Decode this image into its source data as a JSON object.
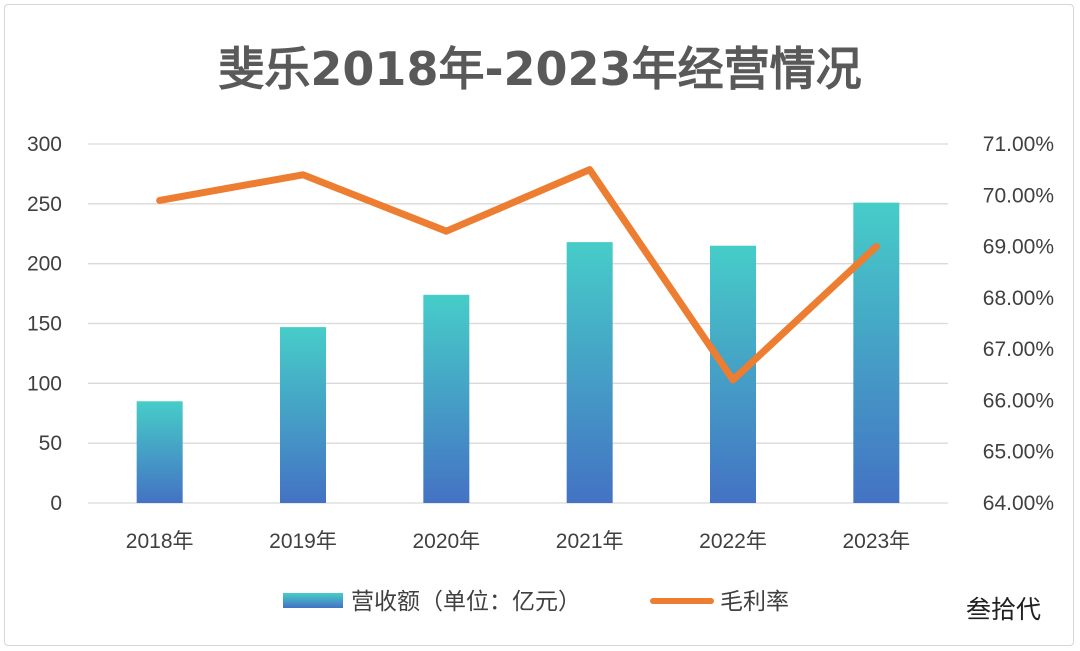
{
  "chart_data": {
    "type": "bar+line",
    "title": "斐乐2018年-2023年经营情况",
    "categories": [
      "2018年",
      "2019年",
      "2020年",
      "2021年",
      "2022年",
      "2023年"
    ],
    "series": [
      {
        "name": "营收额（单位：亿元）",
        "type": "bar",
        "axis": "left",
        "values": [
          85,
          147,
          174,
          218,
          215,
          251
        ],
        "color_top": "#46cdc8",
        "color_bottom": "#4472c4"
      },
      {
        "name": "毛利率",
        "type": "line",
        "axis": "right",
        "values": [
          69.9,
          70.4,
          69.3,
          70.5,
          66.4,
          69.0
        ],
        "color": "#ed7d31"
      }
    ],
    "y_left": {
      "min": 0,
      "max": 300,
      "step": 50,
      "ticks": [
        "0",
        "50",
        "100",
        "150",
        "200",
        "250",
        "300"
      ]
    },
    "y_right": {
      "min": 64,
      "max": 71,
      "step": 1,
      "ticks": [
        "64.00%",
        "65.00%",
        "66.00%",
        "67.00%",
        "68.00%",
        "69.00%",
        "70.00%",
        "71.00%"
      ]
    },
    "grid": true,
    "legend_position": "bottom"
  },
  "watermark": "叁拾代"
}
